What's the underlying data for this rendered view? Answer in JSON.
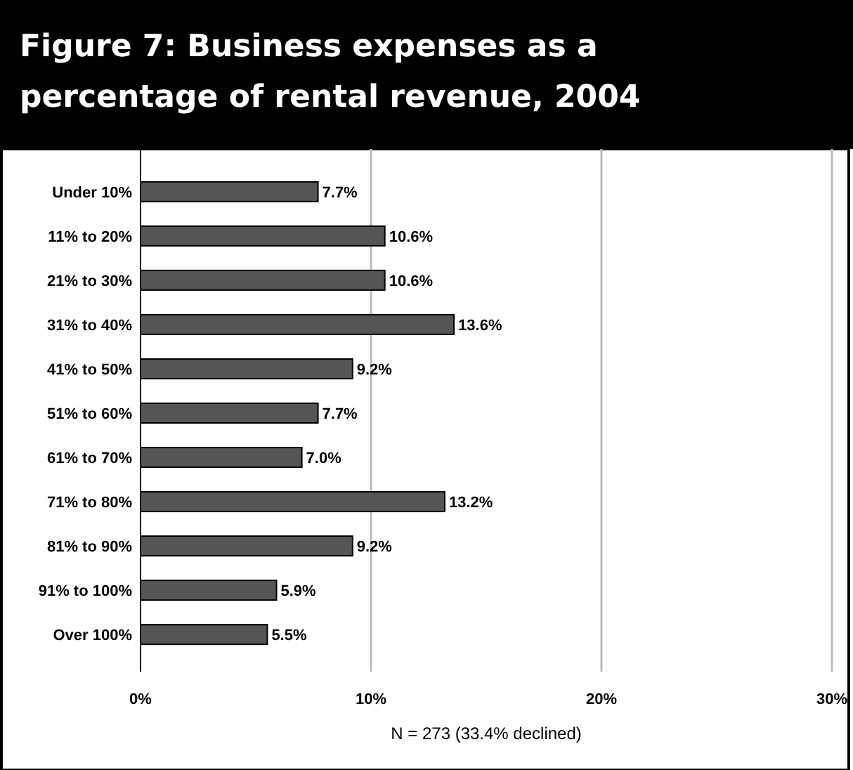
{
  "chart_data": {
    "type": "bar",
    "orientation": "horizontal",
    "title": "Figure 7: Business expenses as a percentage of rental revenue, 2004",
    "categories": [
      "Under 10%",
      "11% to 20%",
      "21% to 30%",
      "31% to 40%",
      "41% to 50%",
      "51% to 60%",
      "61% to 70%",
      "71% to 80%",
      "81% to 90%",
      "91% to 100%",
      "Over 100%"
    ],
    "values": [
      7.7,
      10.6,
      10.6,
      13.6,
      9.2,
      7.7,
      7.0,
      13.2,
      9.2,
      5.9,
      5.5
    ],
    "value_labels": [
      "7.7%",
      "10.6%",
      "10.6%",
      "13.6%",
      "9.2%",
      "7.7%",
      "7.0%",
      "13.2%",
      "9.2%",
      "5.9%",
      "5.5%"
    ],
    "color": "#555555",
    "xlim": [
      0,
      30
    ],
    "xticks": [
      {
        "value": 0,
        "label": "0%"
      },
      {
        "value": 10,
        "label": "10%"
      },
      {
        "value": 20,
        "label": "20%"
      },
      {
        "value": 30,
        "label": "30%"
      }
    ],
    "grid": "x",
    "xlabel": "N = 273 (33.4% declined)"
  }
}
